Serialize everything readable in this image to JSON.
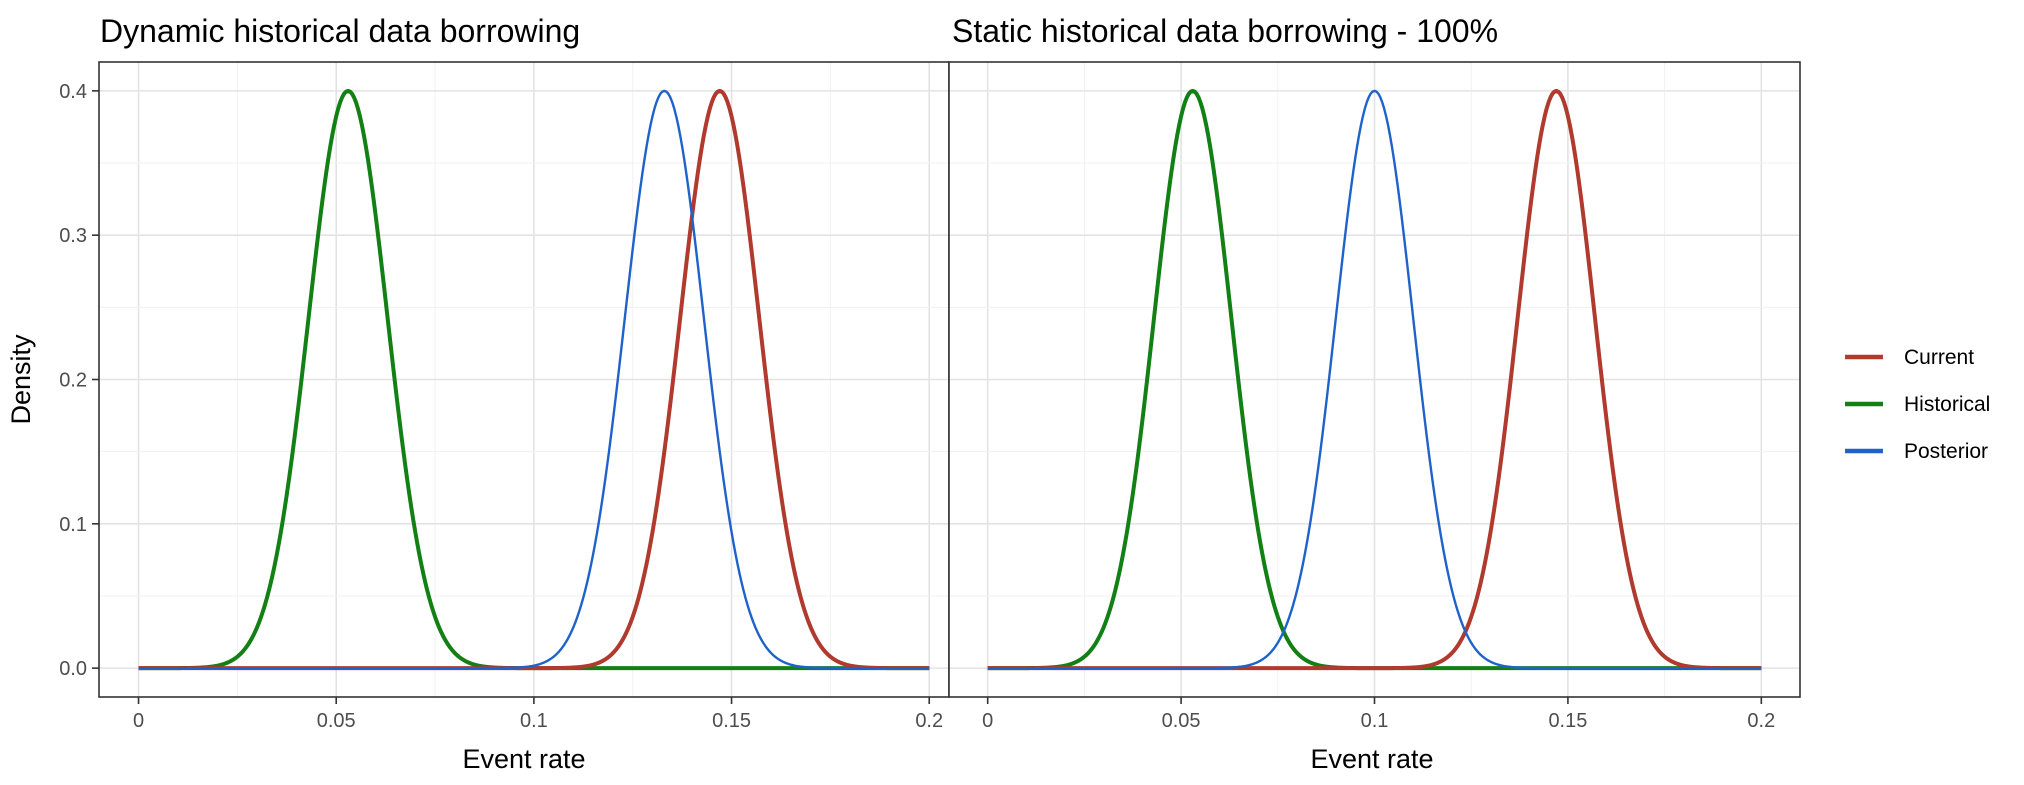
{
  "chart_data": [
    {
      "type": "line",
      "title": "Dynamic historical data borrowing",
      "xlabel": "Event rate",
      "ylabel": "Density",
      "xlim": [
        -0.01,
        0.205
      ],
      "ylim": [
        -0.02,
        0.42
      ],
      "x_ticks": [
        {
          "value": 0,
          "label": "0"
        },
        {
          "value": 0.05,
          "label": "0.05"
        },
        {
          "value": 0.1,
          "label": "0.1"
        },
        {
          "value": 0.15,
          "label": "0.15"
        },
        {
          "value": 0.2,
          "label": "0.2"
        }
      ],
      "y_ticks": [
        {
          "value": 0,
          "label": "0.0"
        },
        {
          "value": 0.1,
          "label": "0.1"
        },
        {
          "value": 0.2,
          "label": "0.2"
        },
        {
          "value": 0.3,
          "label": "0.3"
        },
        {
          "value": 0.4,
          "label": "0.4"
        }
      ],
      "grid": true,
      "series": [
        {
          "name": "Current",
          "mean": 0.147,
          "sd": 0.01,
          "peak": 0.4,
          "color": "#b03a2e"
        },
        {
          "name": "Historical",
          "mean": 0.053,
          "sd": 0.01,
          "peak": 0.4,
          "color": "#138015"
        },
        {
          "name": "Posterior",
          "mean": 0.133,
          "sd": 0.01,
          "peak": 0.4,
          "color": "#1f62c9"
        }
      ]
    },
    {
      "type": "line",
      "title": "Static historical data borrowing - 100%",
      "xlabel": "Event rate",
      "ylabel": "",
      "xlim": [
        -0.01,
        0.21
      ],
      "ylim": [
        -0.02,
        0.42
      ],
      "x_ticks": [
        {
          "value": 0,
          "label": "0"
        },
        {
          "value": 0.05,
          "label": "0.05"
        },
        {
          "value": 0.1,
          "label": "0.1"
        },
        {
          "value": 0.15,
          "label": "0.15"
        },
        {
          "value": 0.2,
          "label": "0.2"
        }
      ],
      "y_ticks": [],
      "grid": true,
      "series": [
        {
          "name": "Current",
          "mean": 0.147,
          "sd": 0.01,
          "peak": 0.4,
          "color": "#b03a2e"
        },
        {
          "name": "Historical",
          "mean": 0.053,
          "sd": 0.01,
          "peak": 0.4,
          "color": "#138015"
        },
        {
          "name": "Posterior",
          "mean": 0.1,
          "sd": 0.01,
          "peak": 0.4,
          "color": "#1f62c9"
        }
      ]
    }
  ],
  "legend": {
    "placement": "right",
    "items": [
      {
        "name": "Current",
        "color": "#b03a2e"
      },
      {
        "name": "Historical",
        "color": "#138015"
      },
      {
        "name": "Posterior",
        "color": "#1f62c9"
      }
    ]
  }
}
